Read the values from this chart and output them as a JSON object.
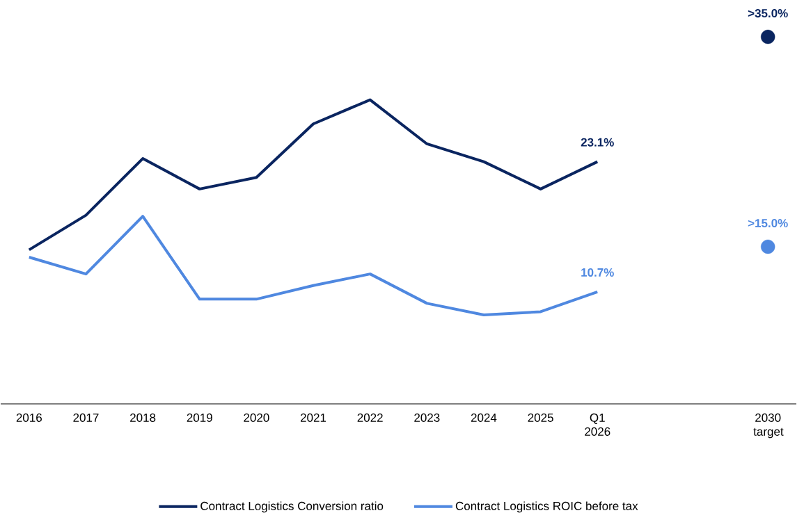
{
  "chart_data": {
    "type": "line",
    "categories": [
      "2016",
      "2017",
      "2018",
      "2019",
      "2020",
      "2021",
      "2022",
      "2023",
      "2024",
      "2025",
      "Q1 2026",
      null,
      null,
      "2030 target"
    ],
    "series": [
      {
        "name": "Contract Logistics Conversion ratio",
        "color": "#0a2560",
        "values": [
          14.7,
          18.0,
          23.4,
          20.5,
          21.6,
          26.7,
          29.0,
          24.8,
          23.1,
          20.5,
          23.1,
          null,
          null,
          null
        ],
        "value_labels": [
          null,
          null,
          null,
          null,
          null,
          null,
          null,
          null,
          null,
          null,
          "23.1%",
          null,
          null,
          null
        ]
      },
      {
        "name": "Contract Logistics ROIC before tax",
        "color": "#4f88e0",
        "values": [
          14.0,
          12.4,
          17.9,
          10.0,
          10.0,
          11.3,
          12.4,
          9.6,
          8.5,
          8.8,
          10.7,
          null,
          null,
          null
        ],
        "value_labels": [
          null,
          null,
          null,
          null,
          null,
          null,
          null,
          null,
          null,
          null,
          "10.7%",
          null,
          null,
          null
        ]
      },
      {
        "type": "scatter",
        "color": "#0a2560",
        "values": [
          null,
          null,
          null,
          null,
          null,
          null,
          null,
          null,
          null,
          null,
          null,
          null,
          null,
          35.0
        ],
        "value_labels": [
          null,
          null,
          null,
          null,
          null,
          null,
          null,
          null,
          null,
          null,
          null,
          null,
          null,
          ">35.0%"
        ]
      },
      {
        "type": "scatter",
        "color": "#4f88e0",
        "values": [
          null,
          null,
          null,
          null,
          null,
          null,
          null,
          null,
          null,
          null,
          null,
          null,
          null,
          15.0
        ],
        "value_labels": [
          null,
          null,
          null,
          null,
          null,
          null,
          null,
          null,
          null,
          null,
          null,
          null,
          null,
          ">15.0%"
        ]
      }
    ],
    "legend": "bottom",
    "line_style": "solid"
  }
}
